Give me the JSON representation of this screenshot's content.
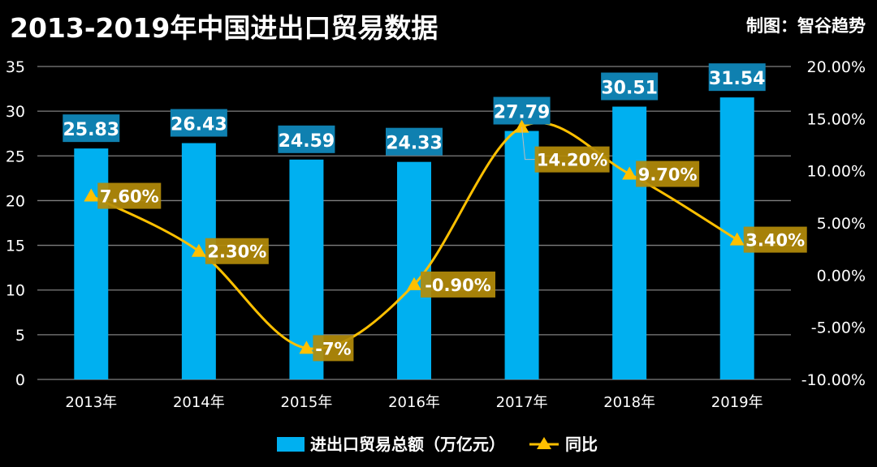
{
  "header": {
    "title": "2013-2019年中国进出口贸易数据",
    "credit": "制图：智谷趋势"
  },
  "chart_data": {
    "type": "bar+line",
    "categories": [
      "2013年",
      "2014年",
      "2015年",
      "2016年",
      "2017年",
      "2018年",
      "2019年"
    ],
    "series": [
      {
        "name": "进出口贸易总额（万亿元）",
        "type": "bar",
        "axis": "left",
        "values": [
          25.83,
          26.43,
          24.59,
          24.33,
          27.79,
          30.51,
          31.54
        ],
        "labels": [
          "25.83",
          "26.43",
          "24.59",
          "24.33",
          "27.79",
          "30.51",
          "31.54"
        ],
        "color": "#00b0f0",
        "label_bg": "#0f80b0"
      },
      {
        "name": "同比",
        "type": "line",
        "axis": "right",
        "smooth": true,
        "marker": "triangle",
        "values": [
          7.6,
          2.3,
          -7,
          -0.9,
          14.2,
          9.7,
          3.4
        ],
        "labels": [
          "7.60%",
          "2.30%",
          "-7%",
          "-0.90%",
          "14.20%",
          "9.70%",
          "3.40%"
        ],
        "color": "#ffc000",
        "label_bg": "#b48c0a"
      }
    ],
    "y_left": {
      "range": [
        0,
        35
      ],
      "ticks": [
        "0",
        "5",
        "10",
        "15",
        "20",
        "25",
        "30",
        "35"
      ]
    },
    "y_right": {
      "range": [
        -10,
        20
      ],
      "ticks": [
        "-10.00%",
        "-5.00%",
        "0.00%",
        "5.00%",
        "10.00%",
        "15.00%",
        "20.00%"
      ]
    },
    "grid": true,
    "grid_color": "#7f7f7f",
    "legend": "bottom"
  }
}
